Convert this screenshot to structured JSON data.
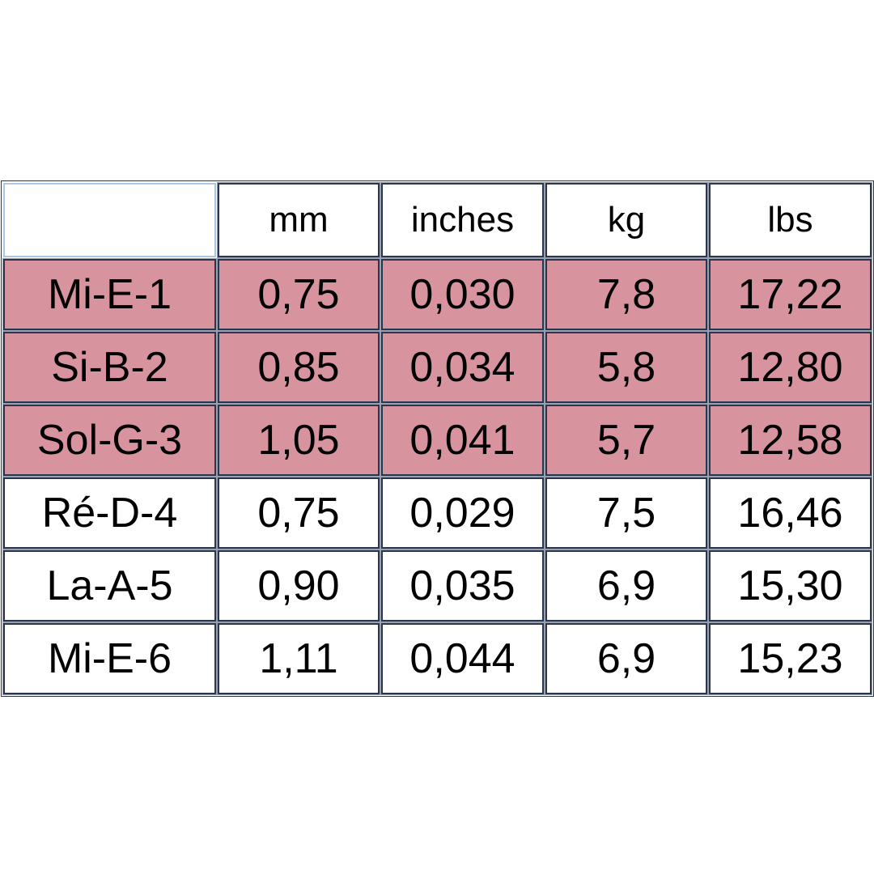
{
  "table": {
    "headers": [
      "",
      "mm",
      "inches",
      "kg",
      "lbs"
    ],
    "highlight_color": "#d8949e",
    "rows": [
      {
        "cells": [
          "Mi-E-1",
          "0,75",
          "0,030",
          "7,8",
          "17,22"
        ],
        "highlighted": true
      },
      {
        "cells": [
          "Si-B-2",
          "0,85",
          "0,034",
          "5,8",
          "12,80"
        ],
        "highlighted": true
      },
      {
        "cells": [
          "Sol-G-3",
          "1,05",
          "0,041",
          "5,7",
          "12,58"
        ],
        "highlighted": true
      },
      {
        "cells": [
          "Ré-D-4",
          "0,75",
          "0,029",
          "7,5",
          "16,46"
        ],
        "highlighted": false
      },
      {
        "cells": [
          "La-A-5",
          "0,90",
          "0,035",
          "6,9",
          "15,30"
        ],
        "highlighted": false
      },
      {
        "cells": [
          "Mi-E-6",
          "1,11",
          "0,044",
          "6,9",
          "15,23"
        ],
        "highlighted": false
      }
    ]
  }
}
